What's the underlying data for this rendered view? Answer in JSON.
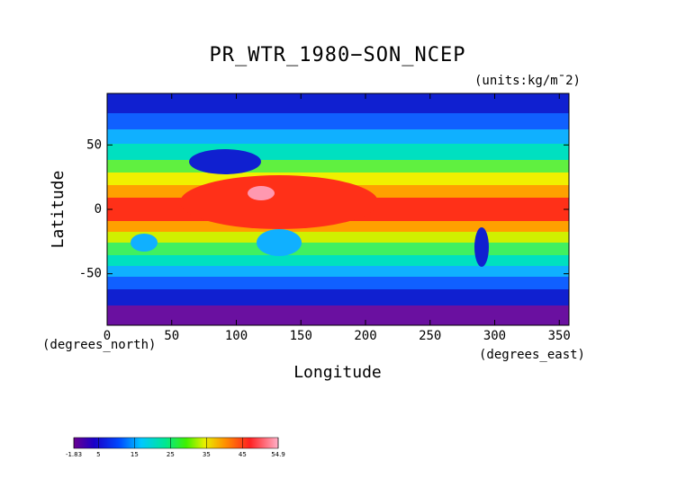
{
  "chart_data": {
    "type": "contour",
    "title": "PR_WTR_1980−SON_NCEP",
    "units_label": "(units:kg/m¯2)",
    "xlabel": "Longitude",
    "ylabel": "Latitude",
    "x_units": "(degrees_east)",
    "y_units": "(degrees_north)",
    "xlim": [
      0,
      357.5
    ],
    "ylim": [
      -90,
      90
    ],
    "xticks": [
      0,
      50,
      100,
      150,
      200,
      250,
      300,
      350
    ],
    "yticks": [
      -50,
      0,
      50
    ],
    "clim": [
      -1.83,
      54.9
    ],
    "cticks": [
      -1.83,
      5,
      15,
      25,
      35,
      45,
      54.9
    ]
  }
}
